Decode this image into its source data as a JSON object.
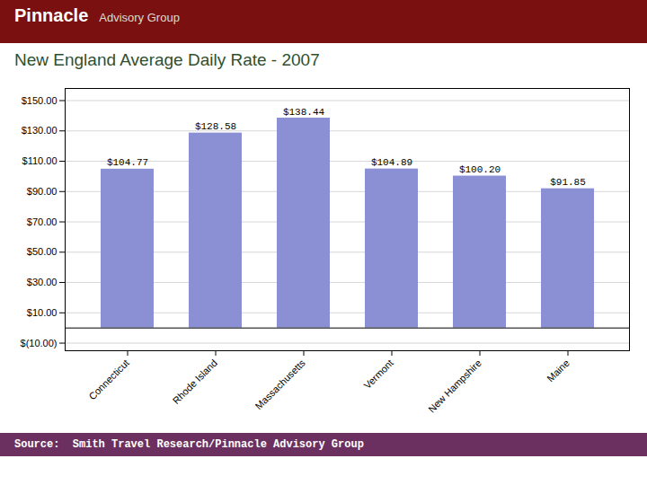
{
  "chart_data": {
    "type": "bar",
    "title": "New England Average Daily Rate - 2007",
    "categories": [
      "Connecticut",
      "Rhode Island",
      "Massachusetts",
      "Vermont",
      "New Hampshire",
      "Maine"
    ],
    "values": [
      104.77,
      128.58,
      138.44,
      104.89,
      100.2,
      91.85
    ],
    "value_labels": [
      "$104.77",
      "$128.58",
      "$138.44",
      "$104.89",
      "$100.20",
      "$91.85"
    ],
    "data_labels": true,
    "color": "#8B8FD4",
    "ylim": [
      -15,
      158
    ],
    "yticks": [
      {
        "value": -10,
        "label": "$(10.00)"
      },
      {
        "value": 10,
        "label": "$10.00"
      },
      {
        "value": 30,
        "label": "$30.00"
      },
      {
        "value": 50,
        "label": "$50.00"
      },
      {
        "value": 70,
        "label": "$70.00"
      },
      {
        "value": 90,
        "label": "$90.00"
      },
      {
        "value": 110,
        "label": "$110.00"
      },
      {
        "value": 130,
        "label": "$130.00"
      },
      {
        "value": 150,
        "label": "$150.00"
      }
    ],
    "grid": true,
    "annotations": [
      "Pinnacle",
      "Advisory Group",
      "Source:  Smith Travel Research/Pinnacle Advisory Group"
    ]
  }
}
